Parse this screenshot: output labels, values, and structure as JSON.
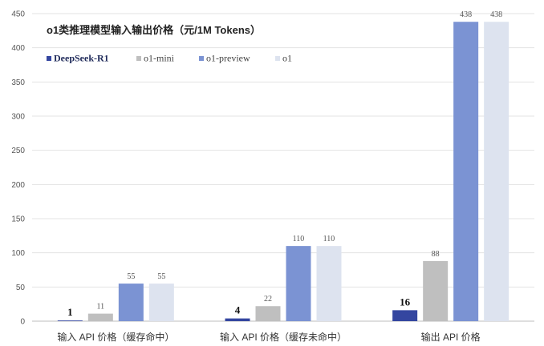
{
  "chart_data": {
    "type": "bar",
    "title": "o1类推理模型输入输出价格（元/1M Tokens）",
    "categories": [
      "输入 API 价格（缓存命中）",
      "输入 API 价格（缓存未命中）",
      "输出 API 价格"
    ],
    "series": [
      {
        "name": "DeepSeek-R1",
        "values": [
          1,
          4,
          16
        ],
        "color": "#3446a0",
        "label_bold": true
      },
      {
        "name": "o1-mini",
        "values": [
          11,
          22,
          88
        ],
        "color": "#bfbfbf",
        "label_bold": false
      },
      {
        "name": "o1-preview",
        "values": [
          55,
          110,
          438
        ],
        "color": "#7b93d3",
        "label_bold": false
      },
      {
        "name": "o1",
        "values": [
          55,
          110,
          438
        ],
        "color": "#dde3ef",
        "label_bold": false
      }
    ],
    "ylim": [
      0,
      450
    ],
    "yticks": [
      0,
      50,
      100,
      150,
      200,
      250,
      300,
      350,
      400,
      450
    ],
    "grid": true,
    "legend_position": "top-left",
    "xlabel": "",
    "ylabel": ""
  }
}
